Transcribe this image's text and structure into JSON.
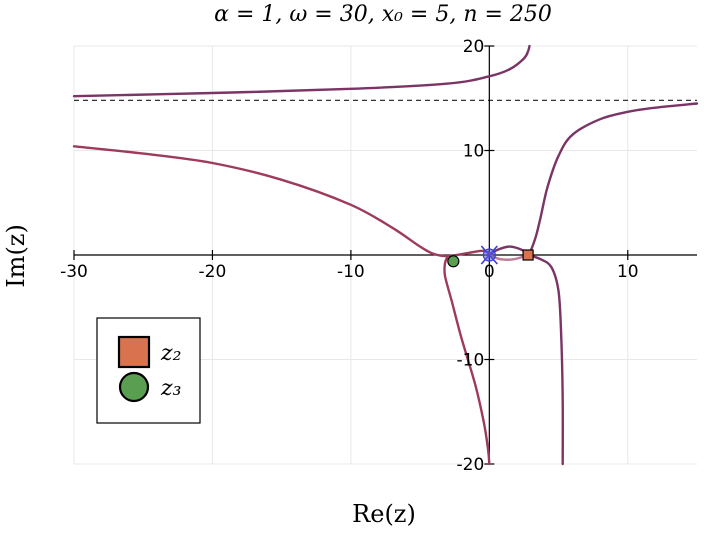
{
  "chart_data": {
    "type": "line",
    "title": "α = 1, ω = 30, x₀ = 5, n = 250",
    "xlabel": "Re(z)",
    "ylabel": "Im(z)",
    "xlim": [
      -30,
      15
    ],
    "ylim": [
      -20,
      20
    ],
    "xticks": [
      -30,
      -20,
      -10,
      0,
      10
    ],
    "xtick_labels": [
      "-30",
      "-20",
      "-10",
      "0",
      "10"
    ],
    "yticks": [
      -20,
      -10,
      10,
      20
    ],
    "ytick_labels": [
      "-20",
      "-10",
      "10",
      "20"
    ],
    "grid": true,
    "asymptote_y": 14.8,
    "series": [
      {
        "color": "#7a3566",
        "points": [
          [
            -30.0,
            15.2
          ],
          [
            -20.0,
            15.5
          ],
          [
            -10.0,
            15.9
          ],
          [
            -3.0,
            16.4
          ],
          [
            0.0,
            17.1
          ],
          [
            1.5,
            17.8
          ],
          [
            2.5,
            18.8
          ],
          [
            2.8,
            19.5
          ],
          [
            2.9,
            20.0
          ]
        ]
      },
      {
        "color": "#9e3a5e",
        "points": [
          [
            -30.0,
            10.4
          ],
          [
            -25.0,
            9.7
          ],
          [
            -20.0,
            8.8
          ],
          [
            -15.0,
            7.2
          ],
          [
            -10.0,
            4.8
          ],
          [
            -7.0,
            2.6
          ],
          [
            -5.0,
            0.8
          ],
          [
            -4.0,
            0.1
          ],
          [
            -3.0,
            -0.1
          ],
          [
            -1.5,
            0.2
          ],
          [
            -0.5,
            0.4
          ],
          [
            0.0,
            0.2
          ]
        ]
      },
      {
        "color": "#9e3a5e",
        "points": [
          [
            -3.0,
            -0.1
          ],
          [
            -3.2,
            -0.8
          ],
          [
            -3.2,
            -2.0
          ],
          [
            -2.7,
            -4.5
          ],
          [
            -2.0,
            -8.0
          ],
          [
            -1.0,
            -12.5
          ],
          [
            -0.4,
            -16.0
          ],
          [
            -0.1,
            -18.5
          ],
          [
            0.0,
            -20.0
          ]
        ]
      },
      {
        "color": "#7a3566",
        "points": [
          [
            0.0,
            0.0
          ],
          [
            0.6,
            0.5
          ],
          [
            1.5,
            0.8
          ],
          [
            2.5,
            0.4
          ],
          [
            2.8,
            0.0
          ],
          [
            3.3,
            1.5
          ],
          [
            3.7,
            3.6
          ],
          [
            4.2,
            6.5
          ],
          [
            5.0,
            9.5
          ],
          [
            6.0,
            11.5
          ],
          [
            8.0,
            13.0
          ],
          [
            10.0,
            13.7
          ],
          [
            12.0,
            14.1
          ],
          [
            15.0,
            14.5
          ]
        ]
      },
      {
        "color": "#7a3566",
        "points": [
          [
            2.8,
            0.0
          ],
          [
            3.7,
            -0.4
          ],
          [
            4.5,
            -1.2
          ],
          [
            5.0,
            -3.5
          ],
          [
            5.2,
            -8.0
          ],
          [
            5.3,
            -14.0
          ],
          [
            5.3,
            -20.0
          ]
        ]
      },
      {
        "color": "#c07a9a",
        "points": [
          [
            0.0,
            0.0
          ],
          [
            0.8,
            -0.4
          ],
          [
            1.8,
            -0.4
          ],
          [
            2.8,
            0.0
          ]
        ]
      }
    ],
    "markers": [
      {
        "label": "z₂",
        "shape": "square",
        "color": "#d9734f",
        "x": 2.8,
        "y": 0.0
      },
      {
        "label": "z₃",
        "shape": "circle",
        "color": "#5a9e52",
        "x": -2.6,
        "y": -0.6
      },
      {
        "label": "",
        "shape": "x",
        "color": "#3a3adc",
        "x": 0.0,
        "y": 0.0
      }
    ],
    "legend": {
      "placement": "bottom-left",
      "entries": [
        {
          "label": "z₂",
          "shape": "square",
          "color": "#d9734f"
        },
        {
          "label": "z₃",
          "shape": "circle",
          "color": "#5a9e52"
        }
      ]
    }
  }
}
